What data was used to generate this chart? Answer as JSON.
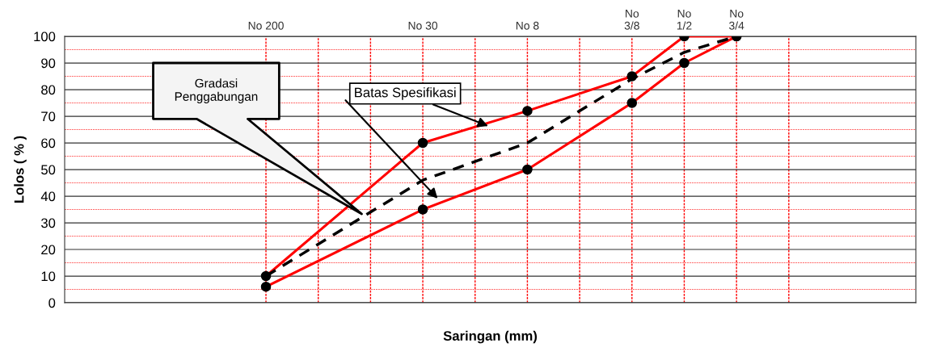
{
  "chart_data": {
    "type": "line",
    "xlabel": "Saringan (mm)",
    "ylabel": "Lolos ( % )",
    "categories": [
      "No 200",
      null,
      null,
      "No 30",
      null,
      "No 8",
      null,
      "No\n3/8",
      "No\n1/2",
      "No\n3/4",
      null
    ],
    "series": [
      {
        "color": "#ff0000",
        "values": [
          10,
          null,
          null,
          60,
          null,
          72,
          null,
          85,
          100,
          100,
          null
        ],
        "marker": "circle",
        "line_style": "solid"
      },
      {
        "color": "#ff0000",
        "values": [
          6,
          null,
          null,
          35,
          null,
          50,
          null,
          75,
          90,
          100,
          null
        ],
        "marker": "circle",
        "line_style": "solid"
      },
      {
        "color": "#000000",
        "values": [
          10,
          null,
          null,
          46,
          null,
          60,
          null,
          84,
          94,
          100,
          null
        ],
        "marker": "none",
        "line_style": "dashed"
      }
    ],
    "ylim": [
      0,
      100
    ],
    "yticks": [
      0,
      {
        "value": 5,
        "label": null
      },
      10,
      {
        "value": 15,
        "label": null
      },
      20,
      {
        "value": 25,
        "label": null
      },
      30,
      {
        "value": 35,
        "label": null
      },
      40,
      {
        "value": 45,
        "label": null
      },
      50,
      {
        "value": 55,
        "label": null
      },
      60,
      {
        "value": 65,
        "label": null
      },
      70,
      {
        "value": 75,
        "label": null
      },
      80,
      {
        "value": 85,
        "label": null
      },
      90,
      {
        "value": 95,
        "label": null
      },
      100
    ],
    "grid": true,
    "annotations": [
      "Gradasi\nPenggabungan",
      "Batas Spesifikasi"
    ]
  }
}
